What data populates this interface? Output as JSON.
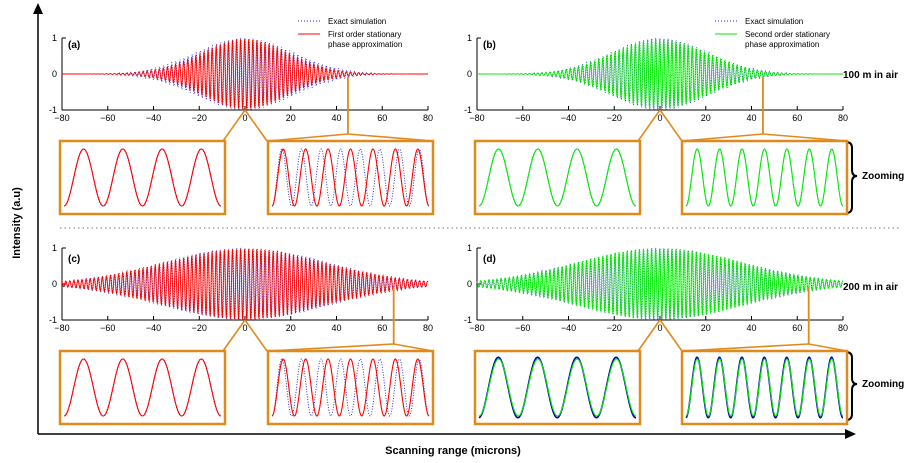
{
  "figure": {
    "ylabel": "Intensity (a.u)",
    "xlabel": "Scanning range (microns)"
  },
  "colors": {
    "first_order": "#ff0000",
    "second_order": "#00ee00",
    "exact": "#2020d0",
    "zoom_box": "#e08a1e",
    "exact_dark": "#0000aa"
  },
  "panels": [
    {
      "key": "a",
      "label": "(a)",
      "legend": [
        "Exact simulation",
        "First order stationary",
        "phase approximation"
      ],
      "approx_color": "first_order",
      "side_label": "",
      "zoom_label": ""
    },
    {
      "key": "b",
      "label": "(b)",
      "legend": [
        "Exact simulation",
        "Second order stationary",
        "phase approximation"
      ],
      "approx_color": "second_order",
      "side_label": "100 m in air",
      "zoom_label": "Zooming"
    },
    {
      "key": "c",
      "label": "(c)",
      "legend": [],
      "approx_color": "first_order",
      "side_label": "",
      "zoom_label": ""
    },
    {
      "key": "d",
      "label": "(d)",
      "legend": [],
      "approx_color": "second_order",
      "side_label": "200 m in air",
      "zoom_label": "Zooming"
    }
  ],
  "chart_data": [
    {
      "type": "line",
      "title": "(a)",
      "xlim": [
        -80,
        80
      ],
      "ylim": [
        -1,
        1
      ],
      "xticks": [
        -80,
        -60,
        -40,
        -20,
        0,
        20,
        40,
        60,
        80
      ],
      "yticks": [
        -1,
        0,
        1
      ],
      "series": [
        {
          "name": "Exact simulation",
          "envelope_peak": 1.0,
          "envelope_width": 21,
          "carrier_cycles": 90
        },
        {
          "name": "First order stationary phase approximation",
          "envelope_peak": 0.97,
          "envelope_width": 19,
          "carrier_cycles": 90
        }
      ],
      "zoom_at": [
        0,
        45
      ]
    },
    {
      "type": "line",
      "title": "(b)",
      "xlim": [
        -80,
        80
      ],
      "ylim": [
        -1,
        1
      ],
      "xticks": [
        -80,
        -60,
        -40,
        -20,
        0,
        20,
        40,
        60,
        80
      ],
      "yticks": [
        -1,
        0,
        1
      ],
      "series": [
        {
          "name": "Exact simulation",
          "envelope_peak": 1.0,
          "envelope_width": 21,
          "carrier_cycles": 90
        },
        {
          "name": "Second order stationary phase approximation",
          "envelope_peak": 0.97,
          "envelope_width": 20,
          "carrier_cycles": 90
        }
      ],
      "zoom_at": [
        0,
        45
      ]
    },
    {
      "type": "line",
      "title": "(c)",
      "xlim": [
        -80,
        80
      ],
      "ylim": [
        -1,
        1
      ],
      "xticks": [
        -80,
        -60,
        -40,
        -20,
        0,
        20,
        40,
        60,
        80
      ],
      "yticks": [
        -1,
        0,
        1
      ],
      "series": [
        {
          "name": "Exact simulation",
          "envelope_peak": 1.0,
          "envelope_width": 36,
          "carrier_cycles": 90
        },
        {
          "name": "First order stationary phase approximation",
          "envelope_peak": 0.98,
          "envelope_width": 35,
          "carrier_cycles": 90
        }
      ],
      "zoom_at": [
        0,
        65
      ]
    },
    {
      "type": "line",
      "title": "(d)",
      "xlim": [
        -80,
        80
      ],
      "ylim": [
        -1,
        1
      ],
      "xticks": [
        -80,
        -60,
        -40,
        -20,
        0,
        20,
        40,
        60,
        80
      ],
      "yticks": [
        -1,
        0,
        1
      ],
      "series": [
        {
          "name": "Exact simulation",
          "envelope_peak": 1.0,
          "envelope_width": 36,
          "carrier_cycles": 90
        },
        {
          "name": "Second order stationary phase approximation",
          "envelope_peak": 0.99,
          "envelope_width": 36,
          "carrier_cycles": 90
        }
      ],
      "zoom_at": [
        0,
        65
      ]
    }
  ]
}
